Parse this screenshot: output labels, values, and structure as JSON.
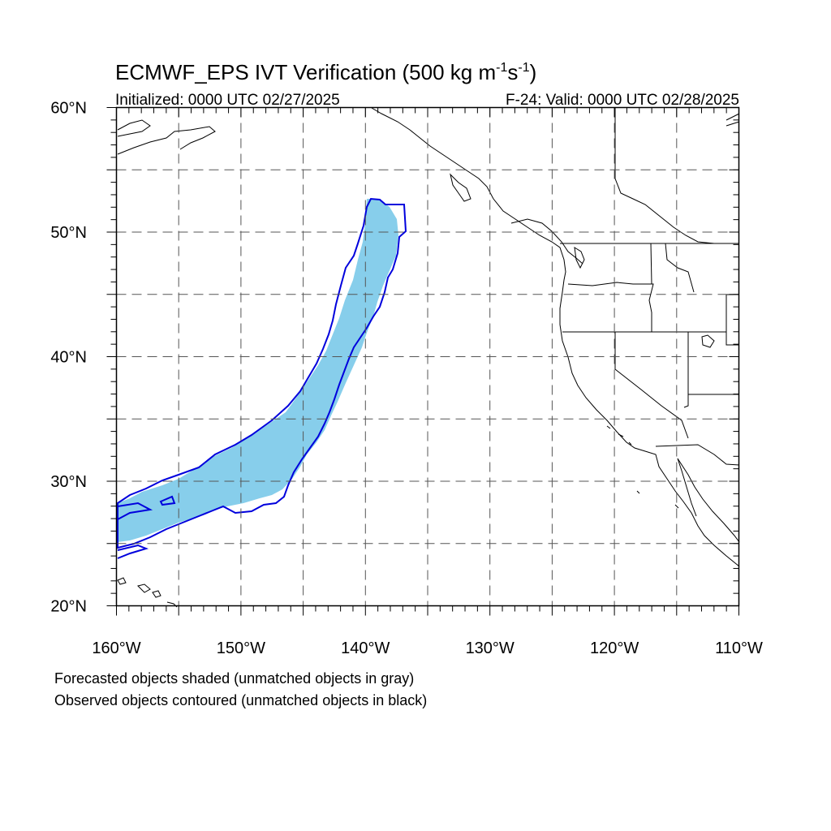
{
  "title": {
    "main": "ECMWF_EPS IVT Verification (500 kg m",
    "exp1": "-1",
    "mid": "s",
    "exp2": "-1",
    "end": ")"
  },
  "subtitle_left": "Initialized: 0000 UTC 02/27/2025",
  "subtitle_right": "F-24: Valid: 0000 UTC 02/28/2025",
  "map": {
    "lon_range": [
      -160,
      -110
    ],
    "lat_range": [
      20,
      60
    ],
    "grid": "dashed every 5 degrees",
    "lon_labels": [
      {
        "lon": -160,
        "label": "160°W"
      },
      {
        "lon": -150,
        "label": "150°W"
      },
      {
        "lon": -140,
        "label": "140°W"
      },
      {
        "lon": -130,
        "label": "130°W"
      },
      {
        "lon": -120,
        "label": "120°W"
      },
      {
        "lon": -110,
        "label": "110°W"
      }
    ],
    "lat_labels": [
      {
        "lat": 20,
        "label": "20°N"
      },
      {
        "lat": 30,
        "label": "30°N"
      },
      {
        "lat": 40,
        "label": "40°N"
      },
      {
        "lat": 50,
        "label": "50°N"
      },
      {
        "lat": 60,
        "label": "60°N"
      }
    ],
    "colors": {
      "forecast_fill": "#87ceeb",
      "observed_contour": "#0000dd",
      "coastline": "#000000"
    }
  },
  "notes": [
    "Forecasted objects shaded (unmatched objects in gray)",
    "Observed objects contoured (unmatched objects in black)"
  ]
}
